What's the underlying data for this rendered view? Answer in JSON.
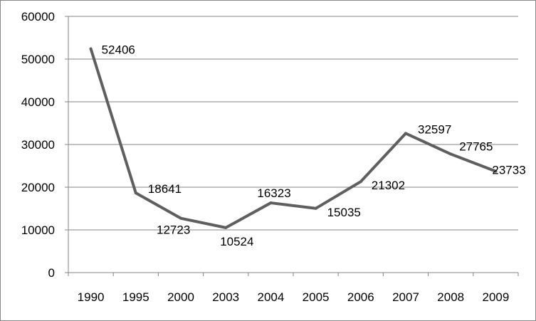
{
  "chart_data": {
    "type": "line",
    "title": "",
    "xlabel": "",
    "ylabel": "",
    "categories": [
      "1990",
      "1995",
      "2000",
      "2003",
      "2004",
      "2005",
      "2006",
      "2007",
      "2008",
      "2009"
    ],
    "series": [
      {
        "values": [
          52406,
          18641,
          12723,
          10524,
          16323,
          15035,
          21302,
          32597,
          27765,
          23733
        ]
      }
    ],
    "data_labels": [
      "52406",
      "18641",
      "12723",
      "10524",
      "16323",
      "15035",
      "21302",
      "32597",
      "27765",
      "23733"
    ],
    "y_ticks": [
      "0",
      "10000",
      "20000",
      "30000",
      "40000",
      "50000",
      "60000"
    ],
    "ylim": [
      0,
      60000
    ],
    "grid": true,
    "legend": "none",
    "colors": {
      "line": "#5f5f5f",
      "grid": "#868686",
      "axis": "#868686"
    }
  }
}
